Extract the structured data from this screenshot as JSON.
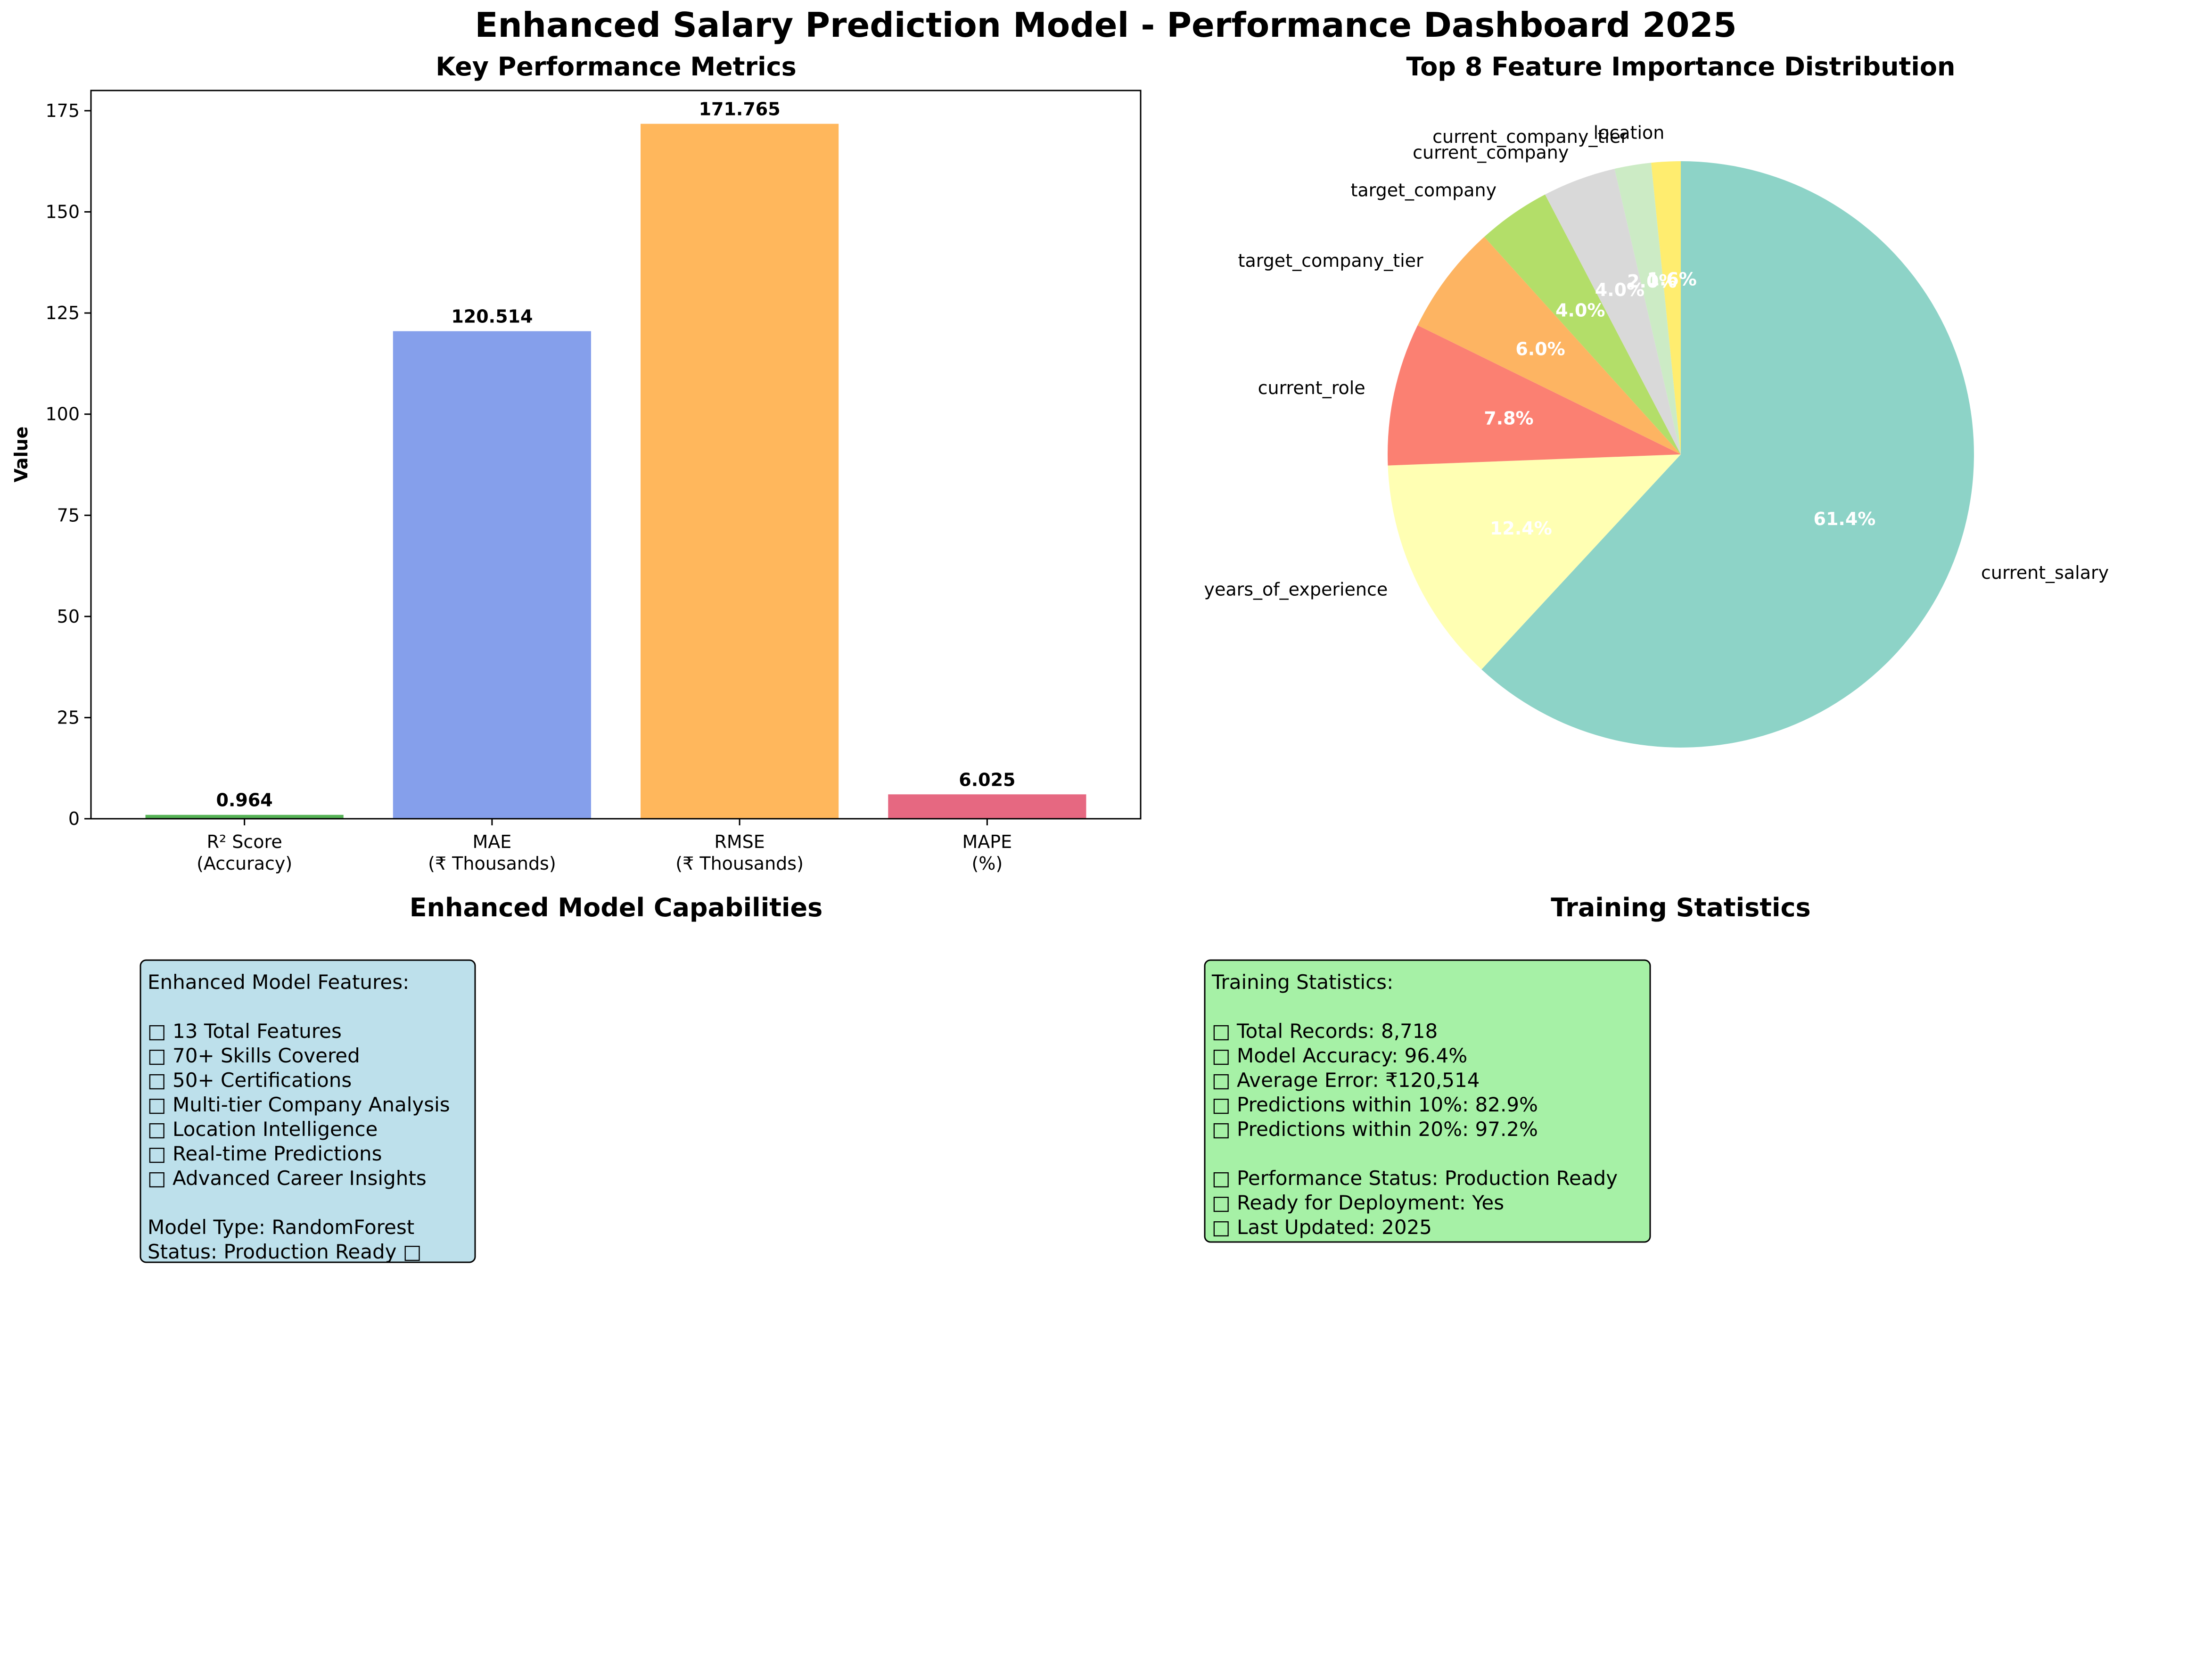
{
  "figure": {
    "title": "Enhanced Salary Prediction Model - Performance Dashboard 2025"
  },
  "chart_data": [
    {
      "type": "bar",
      "title": "Key Performance Metrics",
      "xlabel": "",
      "ylabel": "Value",
      "categories": [
        "R² Score\n(Accuracy)",
        "MAE\n(₹ Thousands)",
        "RMSE\n(₹ Thousands)",
        "MAPE\n(%)"
      ],
      "values": [
        0.964,
        120.514,
        171.765,
        6.025
      ],
      "value_labels": [
        "0.964",
        "120.514",
        "171.765",
        "6.025"
      ],
      "colors": [
        "#2ca02c",
        "#6787e6",
        "#ffa533",
        "#e04262"
      ],
      "ylim": [
        0,
        180
      ],
      "yticks": [
        0,
        25,
        50,
        75,
        100,
        125,
        150,
        175
      ],
      "grid": false
    },
    {
      "type": "pie",
      "title": "Top 8 Feature Importance Distribution",
      "labels": [
        "current_salary",
        "years_of_experience",
        "current_role",
        "target_company_tier",
        "target_company",
        "current_company",
        "current_company_tier",
        "location"
      ],
      "values": [
        61.4,
        12.4,
        7.8,
        6.0,
        4.0,
        4.0,
        2.0,
        1.6
      ],
      "pct_labels": [
        "61.4%",
        "12.4%",
        "7.8%",
        "6.0%",
        "4.0%",
        "4.0%",
        "2.0%",
        "1.6%"
      ],
      "colors": [
        "#8dd3c7",
        "#ffffb3",
        "#fb8072",
        "#fdb462",
        "#b3de69",
        "#d9d9d9",
        "#ccebc5",
        "#ffed6f"
      ],
      "start_angle_deg": 90,
      "direction": "clockwise"
    }
  ],
  "capabilities": {
    "title": "Enhanced Model Capabilities",
    "lines": [
      "Enhanced Model Features:",
      "",
      "□ 13 Total Features",
      "□ 70+ Skills Covered",
      "□ 50+ Certifications",
      "□ Multi-tier Company Analysis",
      "□ Location Intelligence",
      "□ Real-time Predictions",
      "□ Advanced Career Insights",
      "",
      "Model Type: RandomForest",
      "Status: Production Ready □"
    ],
    "box_color": "#add8e6"
  },
  "training": {
    "title": "Training Statistics",
    "lines": [
      "Training Statistics:",
      "",
      "□ Total Records: 8,718",
      "□ Model Accuracy: 96.4%",
      "□ Average Error: ₹120,514",
      "□ Predictions within 10%: 82.9%",
      "□ Predictions within 20%: 97.2%",
      "",
      "□ Performance Status: Production Ready",
      "□ Ready for Deployment: Yes",
      "□ Last Updated: 2025"
    ],
    "box_color": "#90ee90"
  }
}
